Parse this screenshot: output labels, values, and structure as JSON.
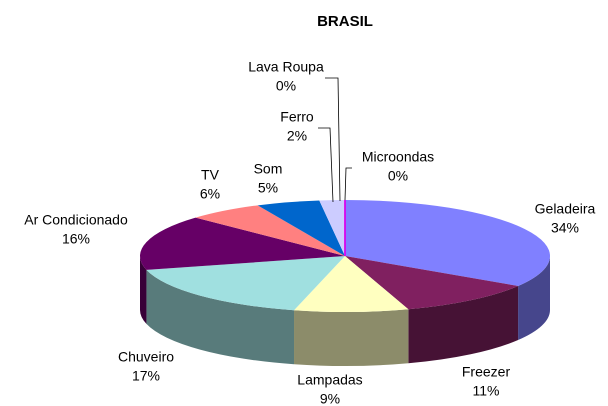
{
  "chart_data": {
    "type": "pie3d",
    "title": "BRASIL",
    "categories": [
      "Geladeira",
      "Freezer",
      "Lampadas",
      "Chuveiro",
      "Ar Condicionado",
      "TV",
      "Som",
      "Ferro",
      "Lava Roupa",
      "Microondas"
    ],
    "values": [
      34,
      11,
      9,
      17,
      16,
      6,
      5,
      2,
      0,
      0
    ],
    "value_labels": [
      "34%",
      "11%",
      "9%",
      "17%",
      "16%",
      "6%",
      "5%",
      "2%",
      "0%",
      "0%"
    ],
    "colors": [
      "#8080ff",
      "#802060",
      "#ffffc0",
      "#a0e0e0",
      "#660066",
      "#ff8080",
      "#0066cc",
      "#ccccff",
      "#000080",
      "#ff00ff"
    ]
  }
}
